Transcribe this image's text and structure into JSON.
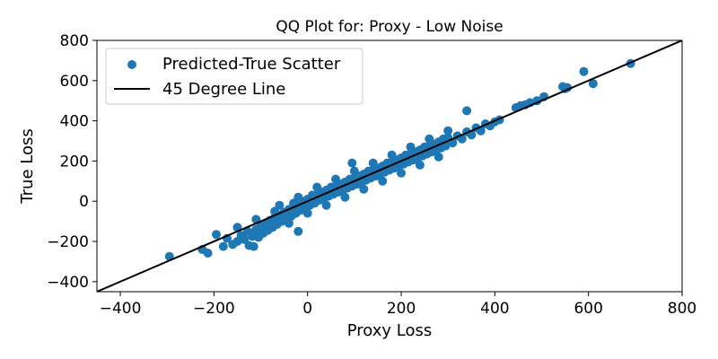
{
  "chart_data": {
    "type": "scatter",
    "title": "QQ Plot for: Proxy - Low Noise",
    "xlabel": "Proxy Loss",
    "ylabel": "True Loss",
    "xlim": [
      -450,
      800
    ],
    "ylim": [
      -450,
      800
    ],
    "xticks": [
      -400,
      -200,
      0,
      200,
      400,
      600,
      800
    ],
    "yticks": [
      -400,
      -200,
      0,
      200,
      400,
      600,
      800
    ],
    "xtick_labels": [
      "−400",
      "−200",
      "0",
      "200",
      "400",
      "600",
      "800"
    ],
    "ytick_labels": [
      "−400",
      "−200",
      "0",
      "200",
      "400",
      "600",
      "800"
    ],
    "grid": false,
    "legend_position": "upper-left",
    "series": [
      {
        "name": "Predicted-True Scatter",
        "kind": "scatter",
        "color": "#1f77b4",
        "points": [
          [
            -295,
            -275
          ],
          [
            -225,
            -240
          ],
          [
            -213,
            -258
          ],
          [
            -195,
            -165
          ],
          [
            -180,
            -225
          ],
          [
            -172,
            -185
          ],
          [
            -160,
            -215
          ],
          [
            -150,
            -200
          ],
          [
            -142,
            -170
          ],
          [
            -135,
            -190
          ],
          [
            -128,
            -150
          ],
          [
            -125,
            -220
          ],
          [
            -118,
            -175
          ],
          [
            -110,
            -140
          ],
          [
            -105,
            -180
          ],
          [
            -100,
            -120
          ],
          [
            -95,
            -160
          ],
          [
            -90,
            -110
          ],
          [
            -85,
            -145
          ],
          [
            -80,
            -95
          ],
          [
            -75,
            -130
          ],
          [
            -70,
            -80
          ],
          [
            -65,
            -115
          ],
          [
            -60,
            -70
          ],
          [
            -55,
            -100
          ],
          [
            -50,
            -55
          ],
          [
            -45,
            -85
          ],
          [
            -40,
            -40
          ],
          [
            -35,
            -75
          ],
          [
            -30,
            -25
          ],
          [
            -25,
            -60
          ],
          [
            -20,
            -15
          ],
          [
            -15,
            -45
          ],
          [
            -10,
            0
          ],
          [
            -5,
            -35
          ],
          [
            0,
            10
          ],
          [
            5,
            -20
          ],
          [
            10,
            20
          ],
          [
            15,
            -10
          ],
          [
            20,
            35
          ],
          [
            25,
            5
          ],
          [
            30,
            45
          ],
          [
            35,
            15
          ],
          [
            40,
            55
          ],
          [
            45,
            25
          ],
          [
            50,
            65
          ],
          [
            55,
            35
          ],
          [
            60,
            75
          ],
          [
            65,
            45
          ],
          [
            70,
            85
          ],
          [
            75,
            55
          ],
          [
            80,
            95
          ],
          [
            85,
            65
          ],
          [
            90,
            105
          ],
          [
            95,
            75
          ],
          [
            100,
            115
          ],
          [
            105,
            85
          ],
          [
            110,
            125
          ],
          [
            115,
            95
          ],
          [
            120,
            135
          ],
          [
            125,
            105
          ],
          [
            130,
            145
          ],
          [
            135,
            115
          ],
          [
            140,
            155
          ],
          [
            145,
            125
          ],
          [
            150,
            165
          ],
          [
            155,
            135
          ],
          [
            160,
            175
          ],
          [
            165,
            145
          ],
          [
            170,
            185
          ],
          [
            175,
            155
          ],
          [
            180,
            195
          ],
          [
            185,
            165
          ],
          [
            190,
            205
          ],
          [
            195,
            175
          ],
          [
            200,
            215
          ],
          [
            205,
            185
          ],
          [
            210,
            225
          ],
          [
            215,
            195
          ],
          [
            220,
            235
          ],
          [
            225,
            205
          ],
          [
            230,
            245
          ],
          [
            235,
            215
          ],
          [
            240,
            255
          ],
          [
            245,
            225
          ],
          [
            250,
            265
          ],
          [
            255,
            235
          ],
          [
            260,
            275
          ],
          [
            265,
            245
          ],
          [
            270,
            285
          ],
          [
            275,
            255
          ],
          [
            280,
            295
          ],
          [
            285,
            265
          ],
          [
            290,
            305
          ],
          [
            295,
            275
          ],
          [
            300,
            315
          ],
          [
            310,
            290
          ],
          [
            320,
            325
          ],
          [
            330,
            310
          ],
          [
            340,
            345
          ],
          [
            350,
            330
          ],
          [
            360,
            365
          ],
          [
            370,
            350
          ],
          [
            380,
            385
          ],
          [
            390,
            375
          ],
          [
            400,
            395
          ],
          [
            410,
            405
          ],
          [
            -60,
            -20
          ],
          [
            -20,
            20
          ],
          [
            20,
            70
          ],
          [
            60,
            110
          ],
          [
            100,
            150
          ],
          [
            140,
            190
          ],
          [
            180,
            230
          ],
          [
            220,
            270
          ],
          [
            260,
            310
          ],
          [
            300,
            350
          ],
          [
            -40,
            -110
          ],
          [
            0,
            -60
          ],
          [
            40,
            -20
          ],
          [
            80,
            20
          ],
          [
            120,
            60
          ],
          [
            160,
            100
          ],
          [
            200,
            140
          ],
          [
            240,
            180
          ],
          [
            280,
            220
          ],
          [
            -150,
            -130
          ],
          [
            -110,
            -90
          ],
          [
            -70,
            -50
          ],
          [
            -30,
            -10
          ],
          [
            10,
            30
          ],
          [
            50,
            70
          ],
          [
            90,
            110
          ],
          [
            130,
            150
          ],
          [
            170,
            190
          ],
          [
            210,
            230
          ],
          [
            250,
            270
          ],
          [
            290,
            310
          ],
          [
            95,
            190
          ],
          [
            -20,
            -150
          ],
          [
            -115,
            -225
          ],
          [
            340,
            450
          ],
          [
            445,
            465
          ],
          [
            455,
            475
          ],
          [
            465,
            480
          ],
          [
            475,
            490
          ],
          [
            490,
            500
          ],
          [
            505,
            520
          ],
          [
            545,
            570
          ],
          [
            550,
            560
          ],
          [
            555,
            565
          ],
          [
            590,
            645
          ],
          [
            610,
            585
          ],
          [
            690,
            685
          ]
        ]
      },
      {
        "name": "45 Degree Line",
        "kind": "line",
        "color": "#000000",
        "points": [
          [
            -450,
            -450
          ],
          [
            800,
            800
          ]
        ]
      }
    ]
  }
}
